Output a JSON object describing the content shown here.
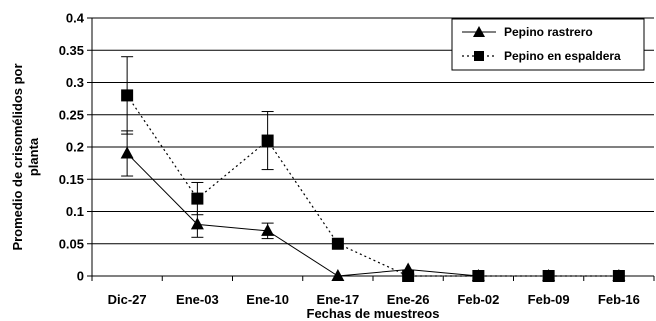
{
  "chart_data": {
    "type": "line",
    "categories": [
      "Dic-27",
      "Ene-03",
      "Ene-10",
      "Ene-17",
      "Ene-26",
      "Feb-02",
      "Feb-09",
      "Feb-16"
    ],
    "series": [
      {
        "name": "Pepino rastrero",
        "values": [
          0.19,
          0.08,
          0.07,
          0.0,
          0.01,
          0.0,
          0.0,
          0.0
        ],
        "error": [
          0.035,
          0.02,
          0.012,
          null,
          null,
          null,
          null,
          null
        ],
        "marker": "triangle",
        "line_style": "solid",
        "color": "#000000"
      },
      {
        "name": "Pepino en espaldera",
        "values": [
          0.28,
          0.12,
          0.21,
          0.05,
          0.0,
          0.0,
          0.0,
          0.0
        ],
        "error": [
          0.06,
          0.025,
          0.045,
          null,
          null,
          null,
          null,
          null
        ],
        "marker": "square",
        "line_style": "dotted",
        "color": "#000000"
      }
    ],
    "xlabel": "Fechas de muestreos",
    "ylabel_line1": "Promedio de crisomélidos por",
    "ylabel_line2": "planta",
    "ylim": [
      0,
      0.4
    ],
    "yticks": [
      "0",
      "0.05",
      "0.1",
      "0.15",
      "0.2",
      "0.25",
      "0.3",
      "0.35",
      "0.4"
    ],
    "grid": true,
    "legend_position": "top-right"
  }
}
